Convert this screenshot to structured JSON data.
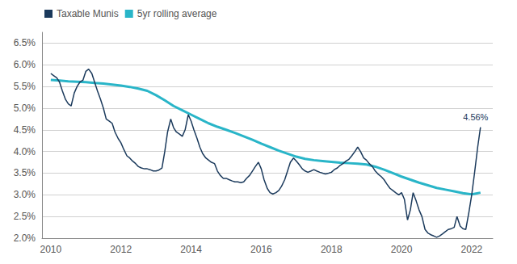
{
  "chart_data": {
    "type": "line",
    "legend": "upper left",
    "grid": true,
    "xlim": [
      2009.75,
      2022.6
    ],
    "xticks": [
      2010,
      2012,
      2014,
      2016,
      2018,
      2020,
      2022
    ],
    "ylim": [
      2.0,
      6.75
    ],
    "yticks": [
      {
        "value": 2.0,
        "label": "2.0%"
      },
      {
        "value": 2.5,
        "label": "2.5%"
      },
      {
        "value": 3.0,
        "label": "3.0%"
      },
      {
        "value": 3.5,
        "label": "3.5%"
      },
      {
        "value": 4.0,
        "label": "4.0%"
      },
      {
        "value": 4.5,
        "label": "4.5%"
      },
      {
        "value": 5.0,
        "label": "5.0%"
      },
      {
        "value": 5.5,
        "label": "5.5%"
      },
      {
        "value": 6.0,
        "label": "6.0%"
      },
      {
        "value": 6.5,
        "label": "6.5%"
      }
    ],
    "annotations": [
      {
        "text": "4.56%",
        "x": 2022.25,
        "y": 4.56,
        "color": "#1b3a5c"
      }
    ],
    "series": [
      {
        "name": "Taxable Munis",
        "color": "#1b3a5c",
        "x": [
          2010.0,
          2010.08,
          2010.17,
          2010.25,
          2010.33,
          2010.42,
          2010.5,
          2010.58,
          2010.67,
          2010.75,
          2010.83,
          2010.92,
          2011.0,
          2011.08,
          2011.17,
          2011.25,
          2011.33,
          2011.42,
          2011.5,
          2011.58,
          2011.67,
          2011.75,
          2011.83,
          2011.92,
          2012.0,
          2012.08,
          2012.17,
          2012.25,
          2012.33,
          2012.42,
          2012.5,
          2012.58,
          2012.67,
          2012.75,
          2012.83,
          2012.92,
          2013.0,
          2013.08,
          2013.17,
          2013.25,
          2013.33,
          2013.42,
          2013.5,
          2013.58,
          2013.67,
          2013.75,
          2013.83,
          2013.92,
          2014.0,
          2014.08,
          2014.17,
          2014.25,
          2014.33,
          2014.42,
          2014.5,
          2014.58,
          2014.67,
          2014.75,
          2014.83,
          2014.92,
          2015.0,
          2015.08,
          2015.17,
          2015.25,
          2015.33,
          2015.42,
          2015.5,
          2015.58,
          2015.67,
          2015.75,
          2015.83,
          2015.92,
          2016.0,
          2016.08,
          2016.17,
          2016.25,
          2016.33,
          2016.42,
          2016.5,
          2016.58,
          2016.67,
          2016.75,
          2016.83,
          2016.92,
          2017.0,
          2017.08,
          2017.17,
          2017.25,
          2017.33,
          2017.42,
          2017.5,
          2017.58,
          2017.67,
          2017.75,
          2017.83,
          2017.92,
          2018.0,
          2018.08,
          2018.17,
          2018.25,
          2018.33,
          2018.42,
          2018.5,
          2018.58,
          2018.67,
          2018.75,
          2018.83,
          2018.92,
          2019.0,
          2019.08,
          2019.17,
          2019.25,
          2019.33,
          2019.42,
          2019.5,
          2019.58,
          2019.67,
          2019.75,
          2019.83,
          2019.92,
          2020.0,
          2020.08,
          2020.17,
          2020.25,
          2020.33,
          2020.42,
          2020.5,
          2020.58,
          2020.67,
          2020.75,
          2020.83,
          2020.92,
          2021.0,
          2021.08,
          2021.17,
          2021.25,
          2021.33,
          2021.42,
          2021.5,
          2021.58,
          2021.67,
          2021.75,
          2021.83,
          2021.92,
          2022.0,
          2022.08,
          2022.17,
          2022.25
        ],
        "values": [
          5.8,
          5.75,
          5.7,
          5.6,
          5.4,
          5.2,
          5.1,
          5.05,
          5.35,
          5.5,
          5.6,
          5.65,
          5.85,
          5.9,
          5.8,
          5.6,
          5.4,
          5.2,
          5.0,
          4.75,
          4.7,
          4.65,
          4.45,
          4.3,
          4.2,
          4.05,
          3.9,
          3.85,
          3.78,
          3.72,
          3.65,
          3.62,
          3.6,
          3.6,
          3.58,
          3.55,
          3.55,
          3.57,
          3.62,
          4.0,
          4.45,
          4.75,
          4.55,
          4.45,
          4.4,
          4.35,
          4.5,
          4.85,
          4.7,
          4.5,
          4.3,
          4.1,
          3.95,
          3.85,
          3.8,
          3.75,
          3.72,
          3.55,
          3.45,
          3.38,
          3.38,
          3.35,
          3.32,
          3.3,
          3.3,
          3.28,
          3.3,
          3.38,
          3.45,
          3.55,
          3.65,
          3.75,
          3.6,
          3.35,
          3.15,
          3.05,
          3.02,
          3.05,
          3.1,
          3.2,
          3.35,
          3.55,
          3.75,
          3.85,
          3.78,
          3.7,
          3.6,
          3.55,
          3.52,
          3.55,
          3.58,
          3.55,
          3.52,
          3.5,
          3.48,
          3.5,
          3.52,
          3.58,
          3.62,
          3.68,
          3.72,
          3.78,
          3.82,
          3.9,
          4.0,
          4.1,
          4.0,
          3.85,
          3.8,
          3.72,
          3.65,
          3.55,
          3.48,
          3.42,
          3.35,
          3.25,
          3.15,
          3.1,
          3.05,
          3.0,
          3.05,
          2.9,
          2.42,
          2.65,
          3.05,
          2.85,
          2.65,
          2.5,
          2.2,
          2.12,
          2.08,
          2.05,
          2.02,
          2.05,
          2.1,
          2.15,
          2.2,
          2.22,
          2.25,
          2.5,
          2.28,
          2.22,
          2.2,
          2.6,
          3.0,
          3.5,
          4.1,
          4.56
        ]
      },
      {
        "name": "5yr rolling average",
        "color": "#29b5c8",
        "x": [
          2010.0,
          2010.25,
          2010.5,
          2010.75,
          2011.0,
          2011.25,
          2011.5,
          2011.75,
          2012.0,
          2012.25,
          2012.5,
          2012.75,
          2013.0,
          2013.25,
          2013.5,
          2013.75,
          2014.0,
          2014.25,
          2014.5,
          2014.75,
          2015.0,
          2015.25,
          2015.5,
          2015.75,
          2016.0,
          2016.25,
          2016.5,
          2016.75,
          2017.0,
          2017.25,
          2017.5,
          2017.75,
          2018.0,
          2018.25,
          2018.5,
          2018.75,
          2019.0,
          2019.25,
          2019.5,
          2019.75,
          2020.0,
          2020.25,
          2020.5,
          2020.75,
          2021.0,
          2021.25,
          2021.5,
          2021.75,
          2022.0,
          2022.25
        ],
        "values": [
          5.65,
          5.635,
          5.62,
          5.61,
          5.6,
          5.58,
          5.565,
          5.545,
          5.52,
          5.49,
          5.45,
          5.4,
          5.3,
          5.18,
          5.05,
          4.95,
          4.85,
          4.75,
          4.65,
          4.57,
          4.5,
          4.43,
          4.35,
          4.27,
          4.18,
          4.1,
          4.02,
          3.95,
          3.88,
          3.83,
          3.8,
          3.78,
          3.76,
          3.74,
          3.73,
          3.72,
          3.7,
          3.65,
          3.58,
          3.5,
          3.42,
          3.35,
          3.28,
          3.22,
          3.16,
          3.12,
          3.08,
          3.04,
          3.01,
          3.05
        ]
      }
    ]
  }
}
